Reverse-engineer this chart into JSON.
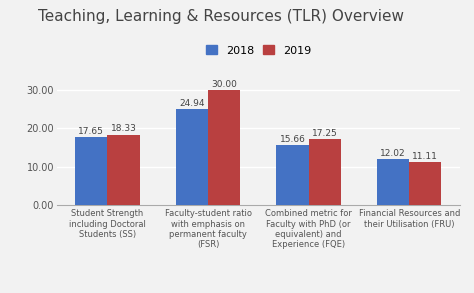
{
  "title": "Teaching, Learning & Resources (TLR) Overview",
  "categories": [
    "Student Strength\nincluding Doctoral\nStudents (SS)",
    "Faculty-student ratio\nwith emphasis on\npermanent faculty\n(FSR)",
    "Combined metric for\nFaculty with PhD (or\nequivalent) and\nExperience (FQE)",
    "Financial Resources and\ntheir Utilisation (FRU)"
  ],
  "values_2018": [
    17.65,
    24.94,
    15.66,
    12.02
  ],
  "values_2019": [
    18.33,
    30.0,
    17.25,
    11.11
  ],
  "color_2018": "#4472C4",
  "color_2019": "#B94040",
  "ylim": [
    0,
    32
  ],
  "yticks": [
    0.0,
    10.0,
    20.0,
    30.0
  ],
  "ytick_labels": [
    "0.00",
    "10.00",
    "20.00",
    "30.00"
  ],
  "bar_width": 0.32,
  "legend_labels": [
    "2018",
    "2019"
  ],
  "background_color": "#f2f2f2",
  "title_fontsize": 11,
  "label_fontsize": 6.0,
  "bar_label_fontsize": 6.5,
  "legend_fontsize": 8,
  "ytick_fontsize": 7
}
